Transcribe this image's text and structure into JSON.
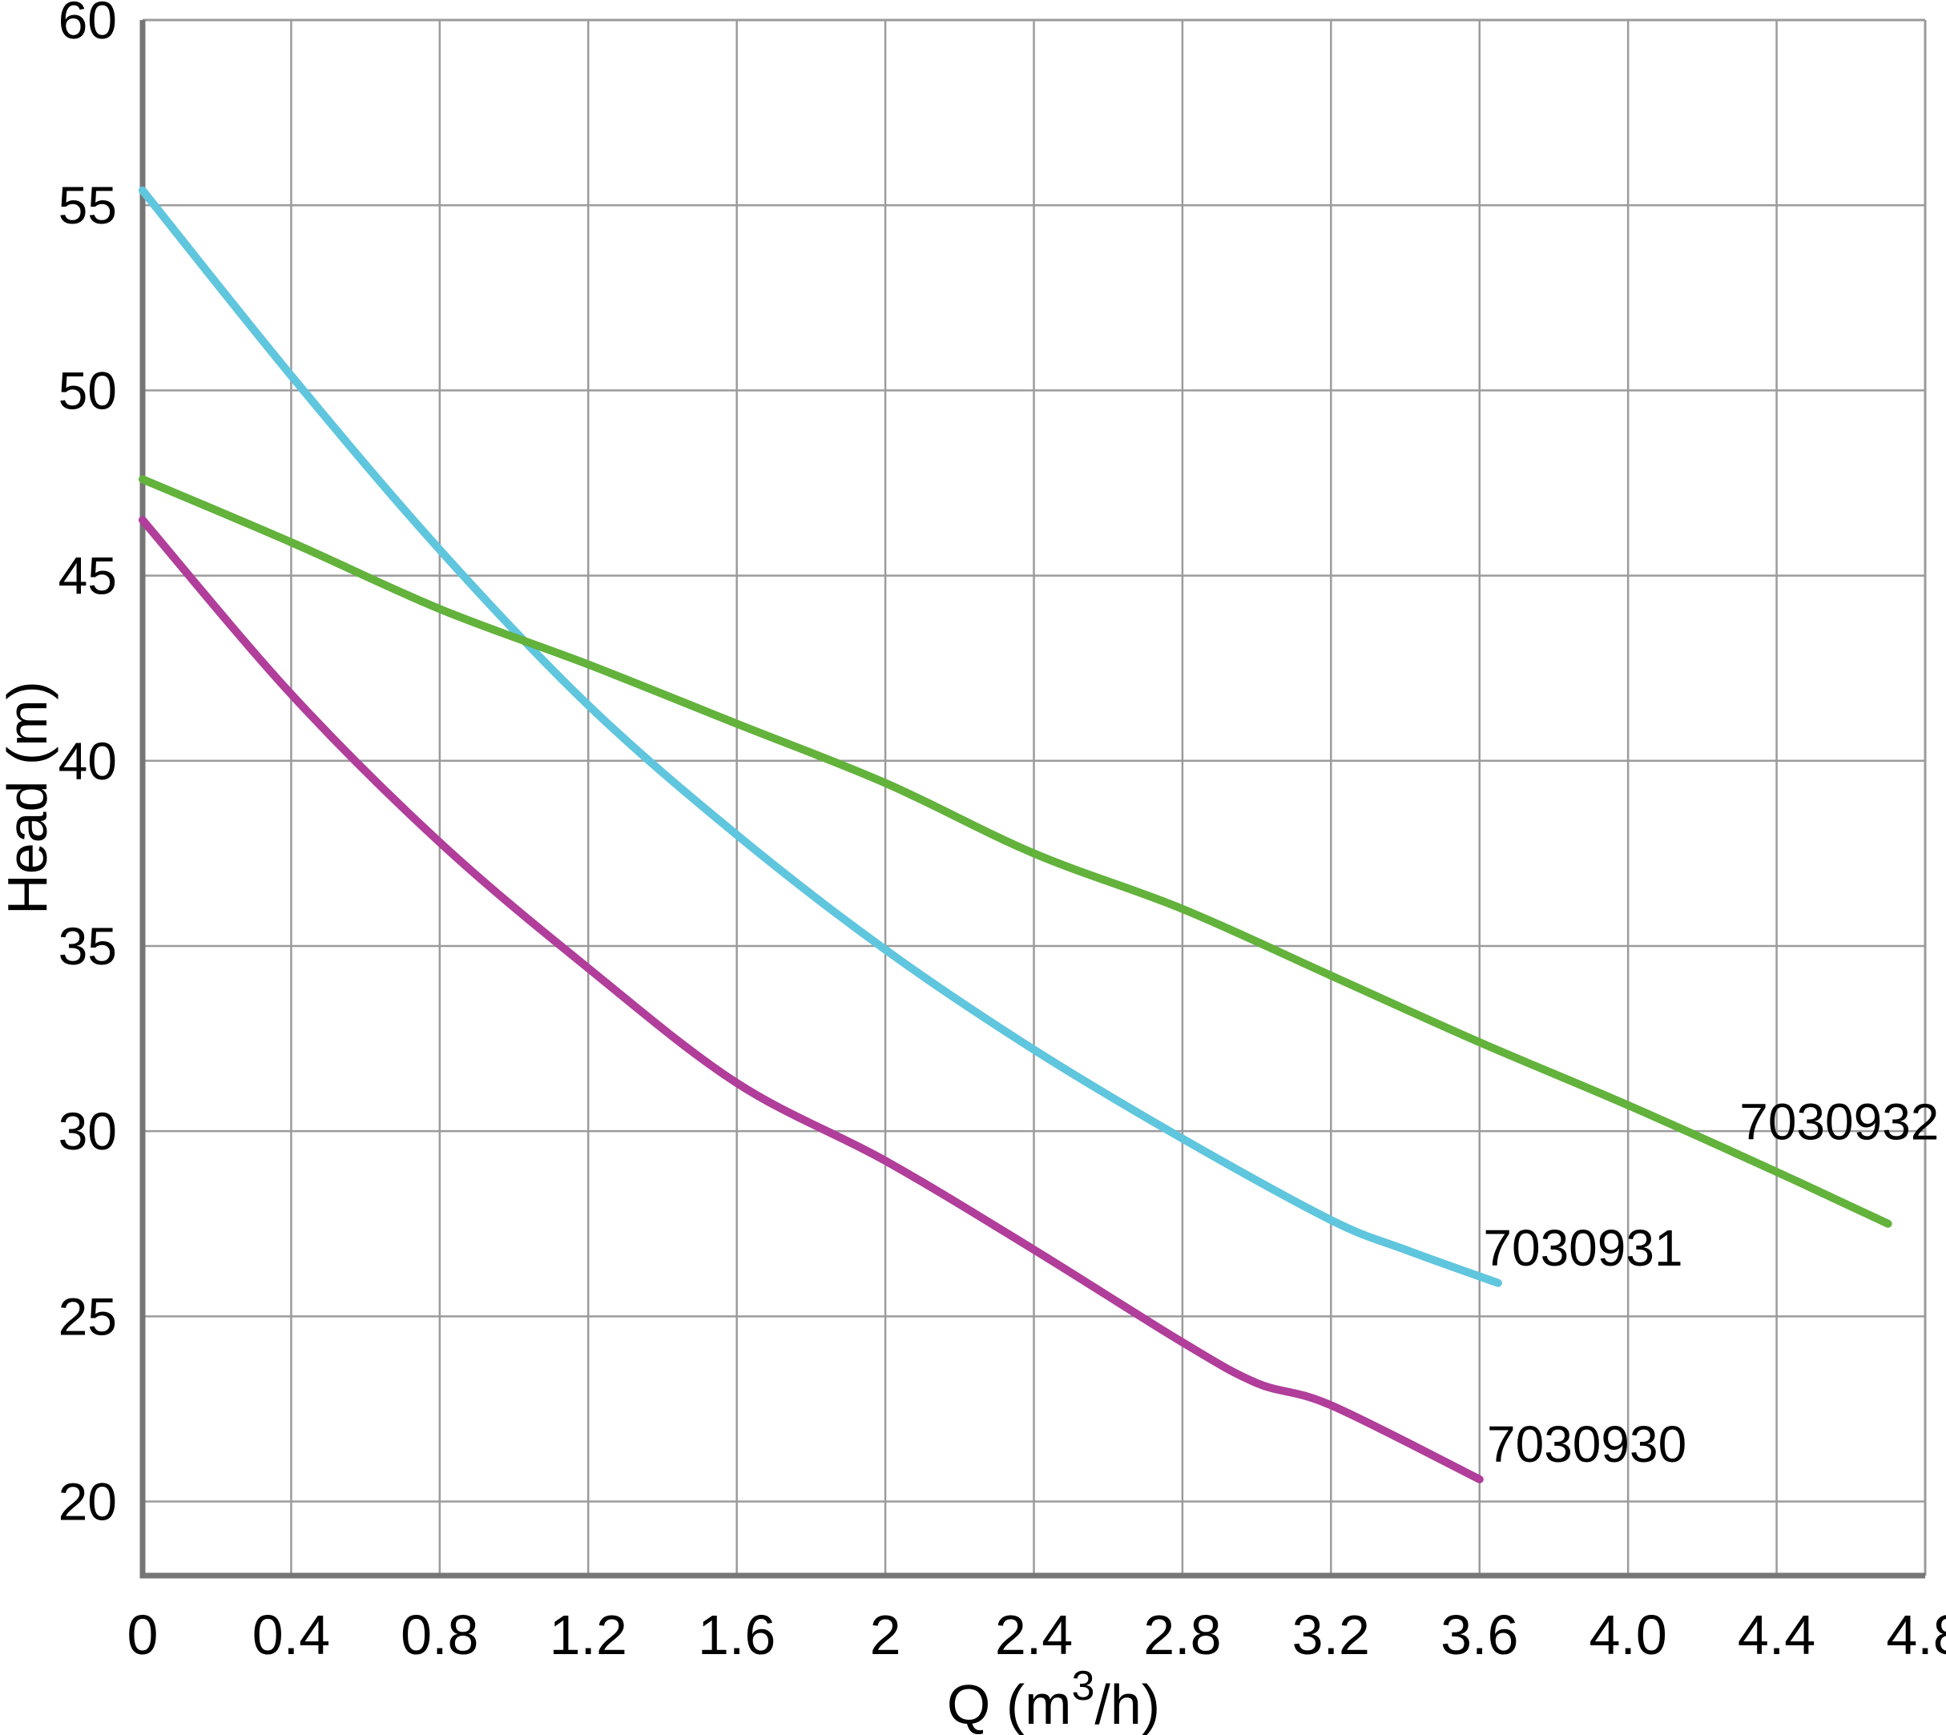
{
  "figure": {
    "background": "#ffffff",
    "grid_color": "#9b9b9b",
    "axis_color": "#767676",
    "border_color": "#9b9b9b",
    "text_color": "#000000"
  },
  "chart_data": {
    "type": "line",
    "title": "",
    "xlabel": "Q (m³/h)",
    "xlabel_parts": {
      "pre": "Q (m",
      "sup": "3",
      "post": "/h)"
    },
    "ylabel": "Head (m)",
    "xlim": [
      0,
      4.8
    ],
    "ylim": [
      18,
      60
    ],
    "grid": true,
    "legend_position": "inline-labels",
    "x_ticks": [
      {
        "v": 0,
        "label": "0"
      },
      {
        "v": 0.4,
        "label": "0.4"
      },
      {
        "v": 0.8,
        "label": "0.8"
      },
      {
        "v": 1.2,
        "label": "1.2"
      },
      {
        "v": 1.6,
        "label": "1.6"
      },
      {
        "v": 2,
        "label": "2"
      },
      {
        "v": 2.4,
        "label": "2.4"
      },
      {
        "v": 2.8,
        "label": "2.8"
      },
      {
        "v": 3.2,
        "label": "3.2"
      },
      {
        "v": 3.6,
        "label": "3.6"
      },
      {
        "v": 4.0,
        "label": "4.0"
      },
      {
        "v": 4.4,
        "label": "4.4"
      },
      {
        "v": 4.8,
        "label": "4.8"
      }
    ],
    "y_ticks": [
      {
        "v": 60,
        "label": "60"
      },
      {
        "v": 55,
        "label": "55"
      },
      {
        "v": 50,
        "label": "50"
      },
      {
        "v": 45,
        "label": "45"
      },
      {
        "v": 40,
        "label": "40"
      },
      {
        "v": 35,
        "label": "35"
      },
      {
        "v": 30,
        "label": "30"
      },
      {
        "v": 25,
        "label": "25"
      },
      {
        "v": 20,
        "label": "20"
      }
    ],
    "series": [
      {
        "name": "7030930",
        "color": "#b03e9a",
        "label_anchor": {
          "x": 3.62,
          "y": 21.55
        },
        "points": [
          [
            0,
            46.5
          ],
          [
            0.4,
            41.8
          ],
          [
            0.8,
            37.8
          ],
          [
            1.2,
            34.4
          ],
          [
            1.6,
            31.3
          ],
          [
            2.0,
            29.2
          ],
          [
            2.4,
            26.8
          ],
          [
            2.8,
            24.3
          ],
          [
            3.0,
            23.2
          ],
          [
            3.2,
            22.6
          ],
          [
            3.6,
            20.6
          ]
        ]
      },
      {
        "name": "7030931",
        "color": "#5fc6de",
        "label_anchor": {
          "x": 3.61,
          "y": 26.85
        },
        "points": [
          [
            0,
            55.4
          ],
          [
            0.4,
            50.4
          ],
          [
            0.8,
            45.7
          ],
          [
            1.2,
            41.5
          ],
          [
            1.6,
            38.0
          ],
          [
            2.0,
            34.9
          ],
          [
            2.4,
            32.2
          ],
          [
            2.8,
            29.8
          ],
          [
            3.2,
            27.6
          ],
          [
            3.4,
            26.8
          ],
          [
            3.65,
            25.9
          ]
        ]
      },
      {
        "name": "7030932",
        "color": "#62b23c",
        "label_anchor": {
          "x": 4.3,
          "y": 30.25
        },
        "points": [
          [
            0,
            47.6
          ],
          [
            0.4,
            45.9
          ],
          [
            0.8,
            44.1
          ],
          [
            1.2,
            42.6
          ],
          [
            1.6,
            41.0
          ],
          [
            2.0,
            39.4
          ],
          [
            2.4,
            37.5
          ],
          [
            2.8,
            36.0
          ],
          [
            3.2,
            34.2
          ],
          [
            3.6,
            32.4
          ],
          [
            4.0,
            30.7
          ],
          [
            4.4,
            28.9
          ],
          [
            4.7,
            27.5
          ]
        ]
      }
    ]
  }
}
